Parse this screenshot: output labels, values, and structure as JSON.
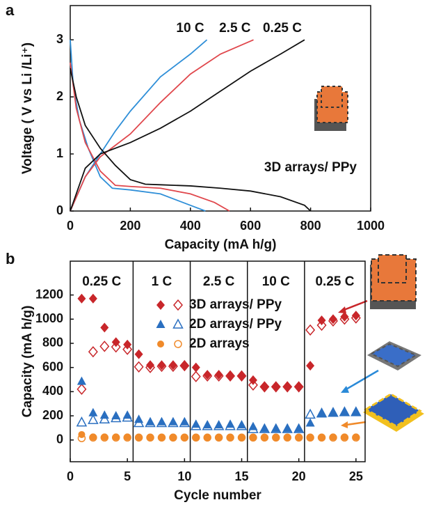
{
  "chart_data": [
    {
      "type": "line",
      "panel_label": "a",
      "x_label": "Capacity (mA h/g)",
      "y_label": "Voltage ( V vs Li /Li⁺)",
      "xlim": [
        0,
        1000
      ],
      "xticks": [
        0,
        200,
        400,
        600,
        800,
        1000
      ],
      "ylim": [
        0,
        3.6
      ],
      "yticks": [
        0,
        1,
        2,
        3
      ],
      "annotation": "3D arrays/ PPy",
      "series": [
        {
          "name": "10 C",
          "color": "#2f8fd8",
          "x": [
            0,
            10,
            30,
            60,
            100,
            140,
            200,
            300,
            400,
            450,
            null,
            0,
            50,
            100,
            150,
            200,
            300,
            400,
            455
          ],
          "values": [
            3.0,
            2.2,
            1.6,
            1.1,
            0.6,
            0.4,
            0.37,
            0.3,
            0.1,
            0,
            null,
            0,
            0.6,
            1.0,
            1.4,
            1.75,
            2.35,
            2.75,
            3.0
          ]
        },
        {
          "name": "2.5 C",
          "color": "#e0474c",
          "x": [
            0,
            20,
            50,
            100,
            150,
            200,
            300,
            400,
            480,
            530,
            null,
            0,
            50,
            100,
            150,
            200,
            300,
            400,
            500,
            610
          ],
          "values": [
            2.6,
            1.8,
            1.2,
            0.7,
            0.45,
            0.43,
            0.4,
            0.3,
            0.15,
            0,
            null,
            0,
            0.6,
            0.95,
            1.15,
            1.35,
            1.9,
            2.4,
            2.75,
            3.0
          ]
        },
        {
          "name": "0.25 C",
          "color": "#111111",
          "x": [
            0,
            20,
            50,
            100,
            150,
            200,
            250,
            300,
            400,
            500,
            600,
            700,
            780,
            800,
            null,
            0,
            50,
            100,
            200,
            300,
            400,
            500,
            600,
            700,
            780
          ],
          "values": [
            2.5,
            2.0,
            1.5,
            1.1,
            0.8,
            0.55,
            0.47,
            0.46,
            0.44,
            0.4,
            0.35,
            0.25,
            0.1,
            0,
            null,
            0,
            0.75,
            1.0,
            1.2,
            1.45,
            1.75,
            2.1,
            2.45,
            2.75,
            3.0
          ]
        }
      ]
    },
    {
      "type": "scatter",
      "panel_label": "b",
      "x_label": "Cycle number",
      "y_label": "Capacity (mA h/g)",
      "xlim": [
        0,
        25.8
      ],
      "xticks": [
        0,
        5,
        10,
        15,
        20,
        25
      ],
      "ylim": [
        -180,
        1480
      ],
      "yticks": [
        0,
        200,
        400,
        600,
        800,
        1000,
        1200
      ],
      "regions": [
        "0.25 C",
        "1 C",
        "2.5 C",
        "10 C",
        "0.25 C"
      ],
      "x": [
        1,
        2,
        3,
        4,
        5,
        6,
        7,
        8,
        9,
        10,
        11,
        12,
        13,
        14,
        15,
        16,
        17,
        18,
        19,
        20,
        21,
        22,
        23,
        24,
        25
      ],
      "series": [
        {
          "name": "3D arrays/ PPy",
          "color": "#c8262a",
          "marker": "diamond",
          "values": [
            1170,
            1170,
            930,
            810,
            790,
            710,
            620,
            620,
            620,
            620,
            600,
            540,
            540,
            535,
            535,
            495,
            440,
            445,
            445,
            445,
            615,
            990,
            1000,
            1020,
            1030
          ],
          "values_open": [
            420,
            730,
            775,
            770,
            750,
            605,
            600,
            610,
            610,
            615,
            525,
            530,
            530,
            530,
            530,
            455,
            440,
            440,
            440,
            440,
            910,
            950,
            985,
            1000,
            1010
          ]
        },
        {
          "name": "2D arrays/ PPy",
          "color": "#2a6fc0",
          "marker": "triangle",
          "values": [
            485,
            225,
            205,
            200,
            205,
            170,
            150,
            150,
            150,
            150,
            130,
            125,
            125,
            130,
            125,
            110,
            95,
            95,
            95,
            95,
            140,
            215,
            225,
            230,
            230
          ],
          "values_open": [
            145,
            165,
            170,
            180,
            185,
            140,
            140,
            140,
            140,
            140,
            115,
            115,
            115,
            115,
            115,
            90,
            90,
            90,
            90,
            90,
            210,
            220,
            225,
            230,
            230
          ]
        },
        {
          "name": "2D arrays",
          "color": "#f08a2a",
          "marker": "circle",
          "values": [
            45,
            25,
            25,
            25,
            25,
            20,
            20,
            20,
            20,
            20,
            20,
            20,
            20,
            20,
            20,
            20,
            20,
            20,
            20,
            20,
            20,
            20,
            25,
            25,
            25
          ],
          "values_open": [
            15,
            20,
            20,
            20,
            20,
            20,
            20,
            20,
            20,
            20,
            20,
            20,
            20,
            20,
            20,
            20,
            20,
            20,
            20,
            20,
            20,
            20,
            20,
            20,
            20
          ]
        }
      ]
    }
  ]
}
